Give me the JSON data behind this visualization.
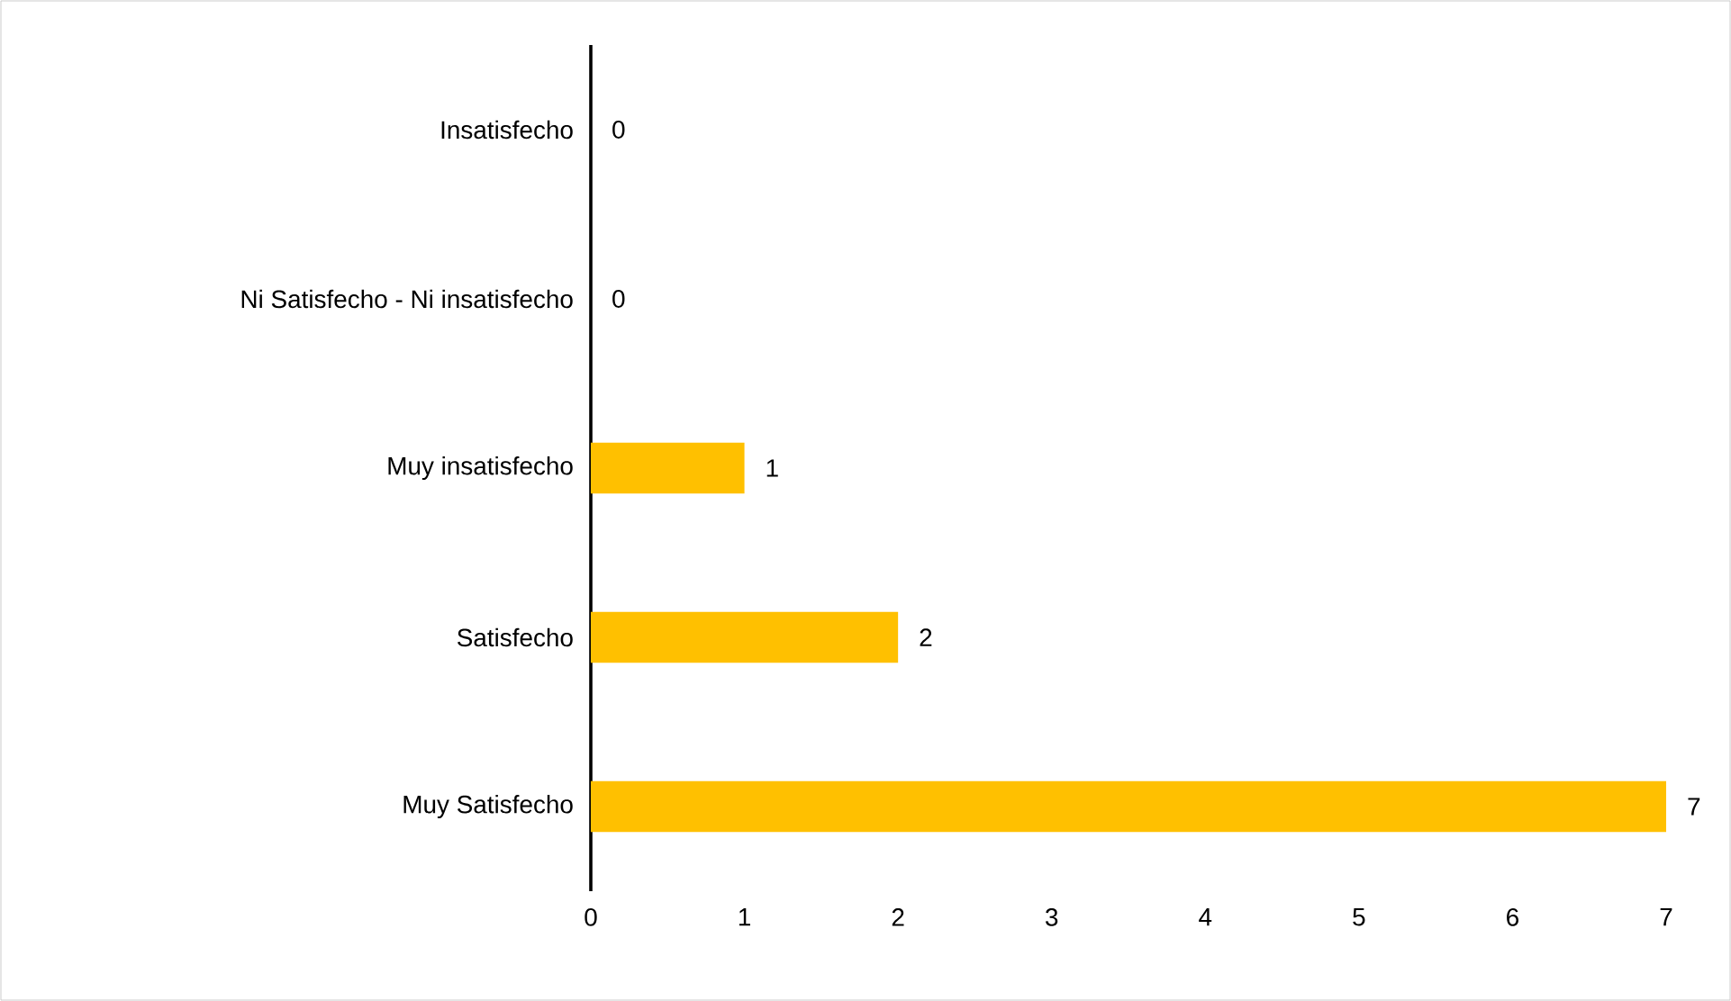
{
  "chart_data": {
    "type": "bar",
    "orientation": "horizontal",
    "categories": [
      "Insatisfecho",
      "Ni Satisfecho - Ni insatisfecho",
      "Muy insatisfecho",
      "Satisfecho",
      "Muy Satisfecho"
    ],
    "values": [
      0,
      0,
      1,
      2,
      7
    ],
    "color": "#ffc000",
    "xlim": [
      0,
      7
    ],
    "xticks": [
      0,
      1,
      2,
      3,
      4,
      5,
      6,
      7
    ],
    "data_labels": true
  }
}
